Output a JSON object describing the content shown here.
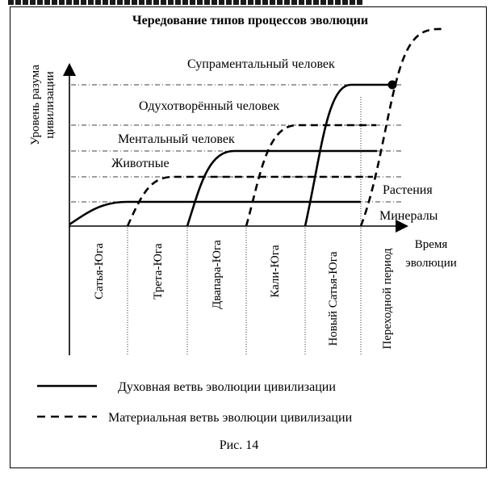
{
  "title": "Чередование типов процессов эволюции",
  "y_axis_label": [
    "Уровень разума",
    "цивилизации"
  ],
  "x_axis_label": [
    "Время",
    "эволюции"
  ],
  "levels": {
    "suprament": "Супраментальный человек",
    "spirit": "Одухотворённый человек",
    "mental": "Ментальный человек",
    "animals": "Животные",
    "plants": "Растения",
    "minerals": "Минералы"
  },
  "periods": [
    "Сатья-Юга",
    "Трета-Юга",
    "Двапара-Юга",
    "Кали-Юга",
    "Новый Сатья-Юга",
    "Переходной период"
  ],
  "legend": {
    "solid": "Духовная ветвь эволюции цивилизации",
    "dashed": "Материальная ветвь эволюции цивилизации"
  },
  "caption": "Рис. 14"
}
